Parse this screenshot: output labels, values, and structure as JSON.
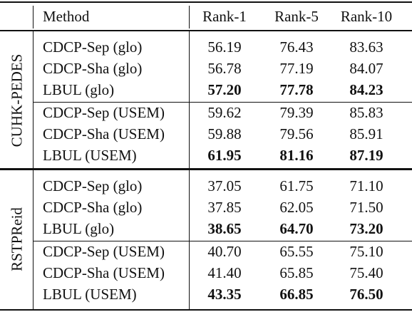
{
  "header": {
    "method": "Method",
    "rank1": "Rank-1",
    "rank5": "Rank-5",
    "rank10": "Rank-10"
  },
  "groups": [
    {
      "dataset": "CUHK-PEDES",
      "rows": [
        {
          "method": "CDCP-Sep (glo)",
          "r1": "56.19",
          "r5": "76.43",
          "r10": "83.63",
          "bold": false
        },
        {
          "method": "CDCP-Sha (glo)",
          "r1": "56.78",
          "r5": "77.19",
          "r10": "84.07",
          "bold": false
        },
        {
          "method": "LBUL (glo)",
          "r1": "57.20",
          "r5": "77.78",
          "r10": "84.23",
          "bold": true
        },
        {
          "method": "CDCP-Sep (USEM)",
          "r1": "59.62",
          "r5": "79.39",
          "r10": "85.83",
          "bold": false
        },
        {
          "method": "CDCP-Sha (USEM)",
          "r1": "59.88",
          "r5": "79.56",
          "r10": "85.91",
          "bold": false
        },
        {
          "method": "LBUL (USEM)",
          "r1": "61.95",
          "r5": "81.16",
          "r10": "87.19",
          "bold": true
        }
      ]
    },
    {
      "dataset": "RSTPReid",
      "rows": [
        {
          "method": "CDCP-Sep (glo)",
          "r1": "37.05",
          "r5": "61.75",
          "r10": "71.10",
          "bold": false
        },
        {
          "method": "CDCP-Sha (glo)",
          "r1": "37.85",
          "r5": "62.05",
          "r10": "71.50",
          "bold": false
        },
        {
          "method": "LBUL (glo)",
          "r1": "38.65",
          "r5": "64.70",
          "r10": "73.20",
          "bold": true
        },
        {
          "method": "CDCP-Sep (USEM)",
          "r1": "40.70",
          "r5": "65.55",
          "r10": "75.10",
          "bold": false
        },
        {
          "method": "CDCP-Sha (USEM)",
          "r1": "41.40",
          "r5": "65.85",
          "r10": "75.40",
          "bold": false
        },
        {
          "method": "LBUL (USEM)",
          "r1": "43.35",
          "r5": "66.85",
          "r10": "76.50",
          "bold": true
        }
      ]
    }
  ]
}
